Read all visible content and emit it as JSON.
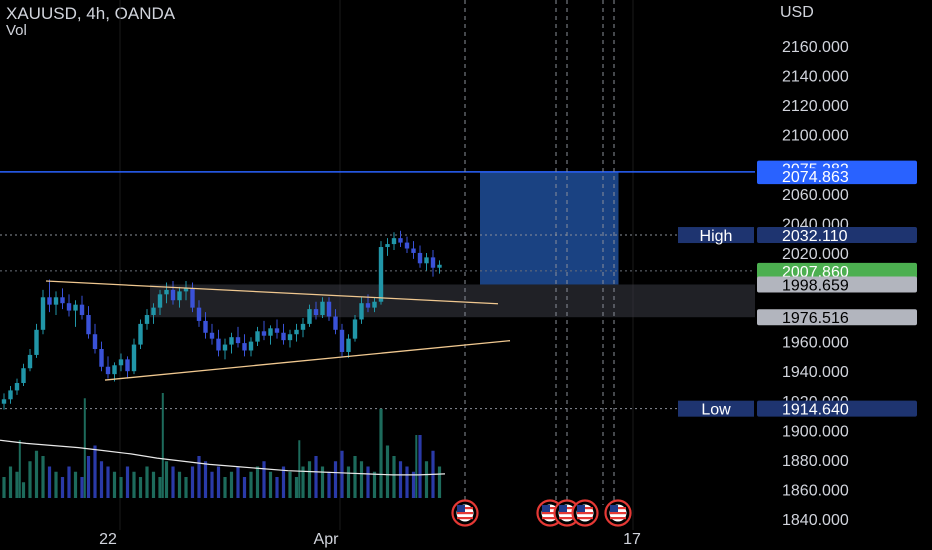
{
  "header": {
    "symbol_line": "XAUUSD, 4h, OANDA",
    "volume_label": "Vol",
    "currency": "USD"
  },
  "chart_data": {
    "type": "candlestick",
    "symbol": "XAUUSD",
    "timeframe": "4h",
    "exchange": "OANDA",
    "price_axis": {
      "range": [
        1830,
        2175
      ],
      "ticks": [
        "2160.000",
        "2140.000",
        "2120.000",
        "2100.000",
        "2060.000",
        "2040.000",
        "2020.000",
        "1960.000",
        "1940.000",
        "1920.000",
        "1900.000",
        "1880.000",
        "1860.000",
        "1840.000"
      ]
    },
    "time_axis": {
      "labels": [
        "22",
        "Apr",
        "17"
      ]
    },
    "candles_ohlc": [
      [
        1918,
        1925,
        1914,
        1921
      ],
      [
        1921,
        1930,
        1918,
        1927
      ],
      [
        1927,
        1935,
        1924,
        1932
      ],
      [
        1932,
        1945,
        1930,
        1942
      ],
      [
        1942,
        1955,
        1940,
        1951
      ],
      [
        1951,
        1972,
        1949,
        1968
      ],
      [
        1968,
        1995,
        1965,
        1990
      ],
      [
        1990,
        2002,
        1980,
        1985
      ],
      [
        1985,
        1994,
        1978,
        1990
      ],
      [
        1990,
        1996,
        1982,
        1986
      ],
      [
        1986,
        1992,
        1977,
        1981
      ],
      [
        1981,
        1988,
        1970,
        1985
      ],
      [
        1985,
        1991,
        1975,
        1978
      ],
      [
        1978,
        1984,
        1962,
        1965
      ],
      [
        1965,
        1972,
        1952,
        1955
      ],
      [
        1955,
        1960,
        1940,
        1943
      ],
      [
        1943,
        1950,
        1935,
        1938
      ],
      [
        1938,
        1946,
        1933,
        1944
      ],
      [
        1944,
        1952,
        1940,
        1948
      ],
      [
        1948,
        1950,
        1935,
        1940
      ],
      [
        1940,
        1962,
        1938,
        1958
      ],
      [
        1958,
        1975,
        1955,
        1972
      ],
      [
        1972,
        1982,
        1968,
        1978
      ],
      [
        1978,
        1986,
        1972,
        1983
      ],
      [
        1983,
        1995,
        1978,
        1992
      ],
      [
        1992,
        2000,
        1986,
        1995
      ],
      [
        1995,
        2001,
        1985,
        1988
      ],
      [
        1988,
        1997,
        1983,
        1994
      ],
      [
        1994,
        2001,
        1988,
        1996
      ],
      [
        1996,
        2000,
        1980,
        1983
      ],
      [
        1983,
        1988,
        1970,
        1974
      ],
      [
        1974,
        1980,
        1962,
        1966
      ],
      [
        1966,
        1972,
        1958,
        1962
      ],
      [
        1962,
        1968,
        1950,
        1954
      ],
      [
        1954,
        1962,
        1948,
        1958
      ],
      [
        1958,
        1966,
        1952,
        1963
      ],
      [
        1963,
        1970,
        1956,
        1959
      ],
      [
        1959,
        1965,
        1950,
        1954
      ],
      [
        1954,
        1963,
        1950,
        1960
      ],
      [
        1960,
        1970,
        1957,
        1967
      ],
      [
        1967,
        1974,
        1961,
        1964
      ],
      [
        1964,
        1971,
        1958,
        1969
      ],
      [
        1969,
        1975,
        1962,
        1966
      ],
      [
        1966,
        1972,
        1958,
        1961
      ],
      [
        1961,
        1968,
        1956,
        1965
      ],
      [
        1965,
        1972,
        1960,
        1968
      ],
      [
        1968,
        1976,
        1963,
        1972
      ],
      [
        1972,
        1985,
        1970,
        1982
      ],
      [
        1982,
        1987,
        1975,
        1978
      ],
      [
        1978,
        1990,
        1976,
        1987
      ],
      [
        1987,
        1990,
        1974,
        1977
      ],
      [
        1977,
        1982,
        1965,
        1968
      ],
      [
        1968,
        1972,
        1950,
        1953
      ],
      [
        1953,
        1965,
        1949,
        1962
      ],
      [
        1962,
        1978,
        1960,
        1975
      ],
      [
        1975,
        1990,
        1972,
        1986
      ],
      [
        1986,
        1992,
        1980,
        1983
      ],
      [
        1983,
        1990,
        1980,
        1987
      ],
      [
        1987,
        2028,
        1985,
        2024
      ],
      [
        2024,
        2030,
        2018,
        2026
      ],
      [
        2026,
        2034,
        2022,
        2030
      ],
      [
        2030,
        2035,
        2024,
        2027
      ],
      [
        2027,
        2031,
        2020,
        2023
      ],
      [
        2023,
        2028,
        2016,
        2020
      ],
      [
        2020,
        2025,
        2010,
        2013
      ],
      [
        2013,
        2020,
        2008,
        2017
      ],
      [
        2017,
        2022,
        2004,
        2010
      ],
      [
        2010,
        2015,
        2006,
        2012
      ]
    ],
    "volume_heights": [
      0.2,
      0.3,
      0.25,
      0.15,
      0.35,
      0.45,
      0.4,
      0.3,
      0.25,
      0.2,
      0.3,
      0.25,
      0.2,
      0.4,
      0.5,
      0.35,
      0.3,
      0.25,
      0.2,
      0.3,
      0.25,
      0.2,
      0.3,
      0.25,
      0.2,
      0.35,
      0.3,
      0.25,
      0.2,
      0.3,
      0.4,
      0.35,
      0.25,
      0.3,
      0.2,
      0.25,
      0.3,
      0.2,
      0.25,
      0.3,
      0.35,
      0.25,
      0.2,
      0.3,
      0.25,
      0.2,
      0.3,
      0.35,
      0.4,
      0.3,
      0.25,
      0.35,
      0.45,
      0.3,
      0.4,
      0.35,
      0.3,
      0.25,
      0.85,
      0.5,
      0.4,
      0.35,
      0.3,
      0.25,
      0.6,
      0.35,
      0.45,
      0.3
    ],
    "volume_spikes": [
      {
        "candle": 2,
        "height": 0.55
      },
      {
        "candle": 12,
        "height": 0.95
      },
      {
        "candle": 24,
        "height": 1.0
      },
      {
        "candle": 45,
        "height": 0.55
      },
      {
        "candle": 63,
        "height": 0.6
      }
    ],
    "volume_ma": [
      0.55,
      0.52,
      0.5,
      0.48,
      0.45,
      0.42,
      0.38,
      0.35,
      0.32,
      0.3,
      0.28,
      0.26,
      0.25,
      0.24,
      0.23,
      0.22,
      0.22,
      0.23
    ],
    "trendlines": {
      "upper": {
        "from_candle": 5,
        "from_price": 2001,
        "to_candle": 74,
        "to_price": 1987
      },
      "lower": {
        "from_candle": 13,
        "from_price": 1934,
        "to_candle": 74,
        "to_price": 1962
      }
    },
    "target_line": 2074.863,
    "long_position_box": {
      "from_candle": 68,
      "to_candle": 89,
      "top": 2074.863,
      "bottom": 1998.659
    },
    "support_zone": {
      "top": 1998.659,
      "bottom": 1976.516
    },
    "high": 2032.11,
    "low": 1914.64,
    "vertical_markers_candles": [
      68,
      80,
      82,
      87,
      89
    ],
    "event_markers_candles": [
      68,
      79,
      82,
      84,
      87
    ],
    "price_labels": [
      {
        "text": "2075.282",
        "bg": "#2962ff",
        "fg": "#ffffff",
        "price": 2077
      },
      {
        "text": "2074.863",
        "bg": "#2962ff",
        "fg": "#ffffff",
        "price": 2072
      },
      {
        "text": "2032.110",
        "bg": "#1e3470",
        "fg": "#ffffff",
        "price": 2032.11
      },
      {
        "text": "2007.860",
        "bg": "#4caf50",
        "fg": "#ffffff",
        "price": 2007.86
      },
      {
        "text": "1998.659",
        "bg": "#b2b5be",
        "fg": "#000000",
        "price": 1998.659
      },
      {
        "text": "1976.516",
        "bg": "#b2b5be",
        "fg": "#000000",
        "price": 1976.516
      },
      {
        "text": "1914.640",
        "bg": "#1e3470",
        "fg": "#ffffff",
        "price": 1914.64
      }
    ],
    "high_label": "High",
    "low_label": "Low",
    "colors": {
      "up": "#2196a8",
      "down": "#3a52d8",
      "volume_up": "#1d6b5c",
      "volume_down": "#2a3aa8",
      "trendline": "#f0c890",
      "target_line": "#2962ff",
      "position_box": "#1f4e99",
      "zone": "#3a3d45",
      "marker_ring": "#e53935"
    }
  }
}
